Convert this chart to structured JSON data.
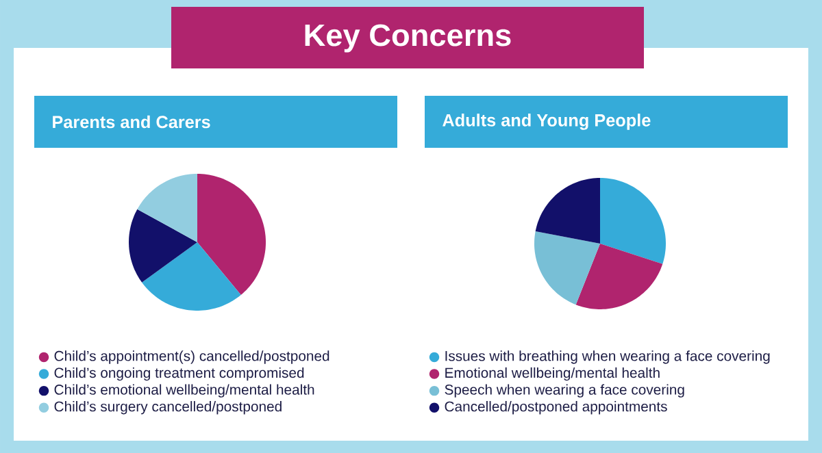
{
  "chart_data": [
    {
      "type": "other",
      "title": "Key Concerns"
    },
    {
      "type": "pie",
      "title": "Parents and Carers",
      "legend": "bottom",
      "categories": [
        "Child’s appointment(s) cancelled/postponed",
        "Child’s ongoing treatment compromised",
        "Child’s emotional wellbeing/mental health",
        "Child’s surgery cancelled/postponed"
      ],
      "values": [
        39,
        26,
        18,
        17
      ],
      "colors": [
        "#b0246e",
        "#35abd9",
        "#12106a",
        "#92cde0"
      ]
    },
    {
      "type": "pie",
      "title": "Adults and Young People",
      "legend": "bottom",
      "categories": [
        "Issues with breathing when wearing a face covering",
        "Emotional wellbeing/mental health",
        "Speech when wearing a face covering",
        "Cancelled/postponed appointments"
      ],
      "values": [
        30,
        26,
        22,
        22
      ],
      "colors": [
        "#35abd9",
        "#b0246e",
        "#78bfd6",
        "#12106a"
      ]
    }
  ]
}
